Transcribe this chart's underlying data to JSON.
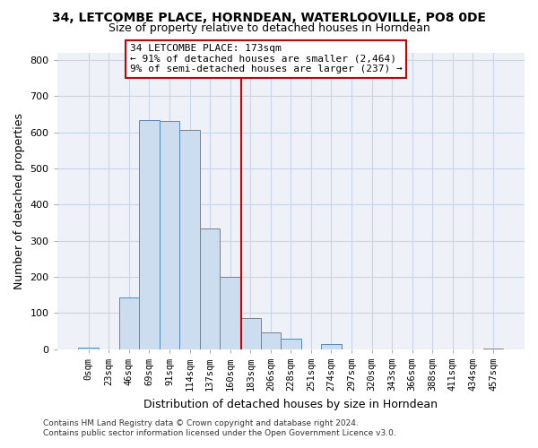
{
  "title": "34, LETCOMBE PLACE, HORNDEAN, WATERLOOVILLE, PO8 0DE",
  "subtitle": "Size of property relative to detached houses in Horndean",
  "xlabel": "Distribution of detached houses by size in Horndean",
  "ylabel": "Number of detached properties",
  "bar_labels": [
    "0sqm",
    "23sqm",
    "46sqm",
    "69sqm",
    "91sqm",
    "114sqm",
    "137sqm",
    "160sqm",
    "183sqm",
    "206sqm",
    "228sqm",
    "251sqm",
    "274sqm",
    "297sqm",
    "320sqm",
    "343sqm",
    "366sqm",
    "388sqm",
    "411sqm",
    "434sqm",
    "457sqm"
  ],
  "bar_heights": [
    3,
    0,
    143,
    635,
    632,
    608,
    333,
    200,
    85,
    46,
    28,
    0,
    13,
    0,
    0,
    0,
    0,
    0,
    0,
    0,
    2
  ],
  "bar_color": "#ccddf0",
  "bar_edge_color": "#5588bb",
  "vline_color": "#cc0000",
  "annotation_line1": "34 LETCOMBE PLACE: 173sqm",
  "annotation_line2": "← 91% of detached houses are smaller (2,464)",
  "annotation_line3": "9% of semi-detached houses are larger (237) →",
  "ylim": [
    0,
    820
  ],
  "yticks": [
    0,
    100,
    200,
    300,
    400,
    500,
    600,
    700,
    800
  ],
  "footer1": "Contains HM Land Registry data © Crown copyright and database right 2024.",
  "footer2": "Contains public sector information licensed under the Open Government Licence v3.0.",
  "background_color": "#ffffff",
  "plot_bg_color": "#eef2f8",
  "grid_color": "#c8d4e8",
  "title_fontsize": 10,
  "subtitle_fontsize": 9
}
